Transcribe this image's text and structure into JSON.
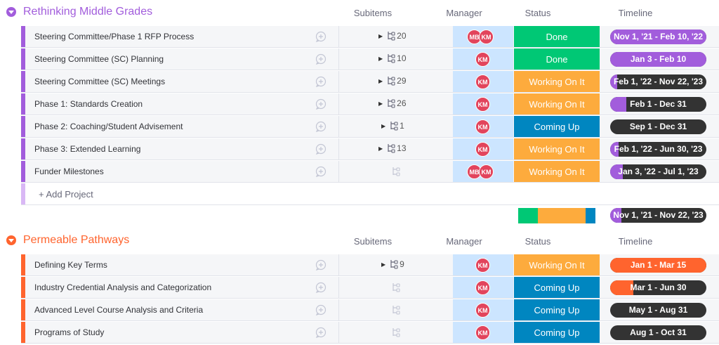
{
  "columns": {
    "subitems": "Subitems",
    "manager": "Manager",
    "status": "Status",
    "timeline": "Timeline"
  },
  "colors": {
    "done": "#00c875",
    "working": "#fdab3d",
    "coming": "#0086c0",
    "purple": "#a25ddc",
    "orange": "#ff642e",
    "avatar": "#e2445c"
  },
  "groups": [
    {
      "title": "Rethinking Middle Grades",
      "color": "#a25ddc",
      "rows": [
        {
          "name": "Steering Committee/Phase 1 RFP Process",
          "subitems": "20",
          "managers": [
            "MB",
            "KM"
          ],
          "status": "Done",
          "timeline": "Nov 1, '21 - Feb 10, '22",
          "progress": 1.0
        },
        {
          "name": "Steering Committee (SC) Planning",
          "subitems": "10",
          "managers": [
            "KM"
          ],
          "status": "Done",
          "timeline": "Jan 3 - Feb 10",
          "progress": 1.0
        },
        {
          "name": "Steering Committee (SC) Meetings",
          "subitems": "29",
          "managers": [
            "KM"
          ],
          "status": "Working On It",
          "timeline": "Feb 1, '22 - Nov 22, '23",
          "progress": 0.07
        },
        {
          "name": "Phase 1: Standards Creation",
          "subitems": "26",
          "managers": [
            "KM"
          ],
          "status": "Working On It",
          "timeline": "Feb 1 - Dec 31",
          "progress": 0.17
        },
        {
          "name": "Phase 2: Coaching/Student Advisement",
          "subitems": "1",
          "managers": [
            "KM"
          ],
          "status": "Coming Up",
          "timeline": "Sep 1 - Dec 31",
          "progress": 0.0
        },
        {
          "name": "Phase 3: Extended Learning",
          "subitems": "13",
          "managers": [
            "KM"
          ],
          "status": "Working On It",
          "timeline": "Feb 1, '22 - Jun 30, '23",
          "progress": 0.09
        },
        {
          "name": "Funder Milestones",
          "subitems": "",
          "managers": [
            "MB",
            "KM"
          ],
          "status": "Working On It",
          "timeline": "Jan 3, '22 - Jul 1, '23",
          "progress": 0.13
        }
      ],
      "add_label": "+ Add Project",
      "summary_timeline": "Nov 1, '21 - Nov 22, '23",
      "summary_progress": 0.12
    },
    {
      "title": "Permeable Pathways",
      "color": "#ff642e",
      "rows": [
        {
          "name": "Defining Key Terms",
          "subitems": "9",
          "managers": [
            "KM"
          ],
          "status": "Working On It",
          "timeline": "Jan 1 - Mar 15",
          "progress": 1.0
        },
        {
          "name": "Industry Credential Analysis and Categorization",
          "subitems": "",
          "managers": [
            "KM"
          ],
          "status": "Coming Up",
          "timeline": "Mar 1 - Jun 30",
          "progress": 0.24
        },
        {
          "name": "Advanced Level Course Analysis and Criteria",
          "subitems": "",
          "managers": [
            "KM"
          ],
          "status": "Coming Up",
          "timeline": "May 1 - Aug 31",
          "progress": 0.0
        },
        {
          "name": "Programs of Study",
          "subitems": "",
          "managers": [
            "KM"
          ],
          "status": "Coming Up",
          "timeline": "Aug 1 - Oct 31",
          "progress": 0.0
        }
      ]
    }
  ]
}
